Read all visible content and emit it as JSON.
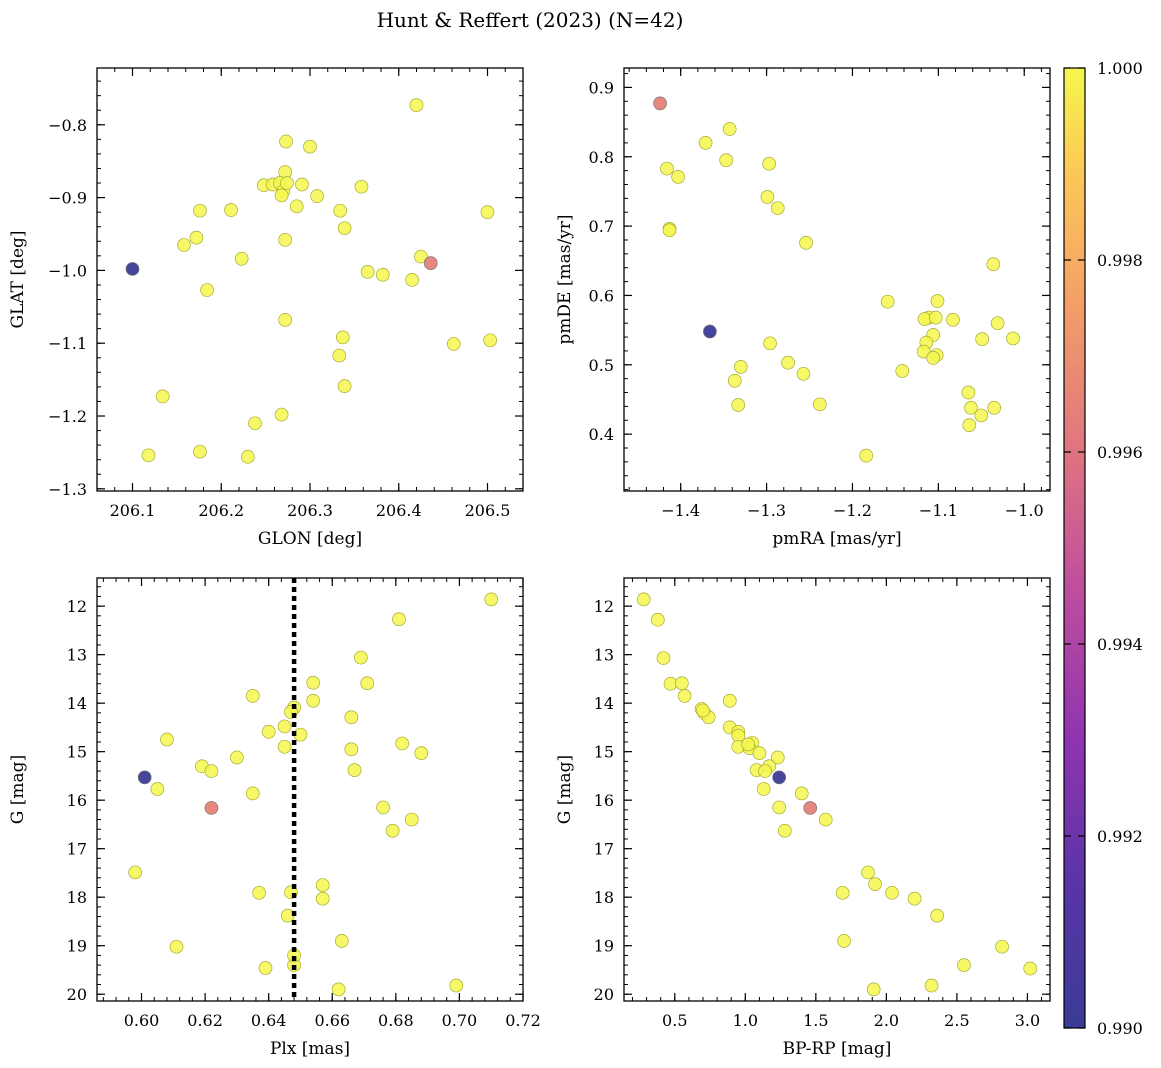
{
  "figure_title": "Hunt & Reffert (2023) (N=42)",
  "colorbar": {
    "range": [
      0.99,
      1.0
    ],
    "ticks": [
      "1.000",
      "0.998",
      "0.996",
      "0.994",
      "0.992",
      "0.990"
    ],
    "colormap": "plasma"
  },
  "chart_data": [
    {
      "type": "scatter",
      "id": "glon-glat",
      "xlabel": "GLON [deg]",
      "ylabel": "GLAT [deg]",
      "xlim": [
        206.06,
        206.54
      ],
      "ylim": [
        -1.303,
        -0.722
      ],
      "xticks": [
        206.1,
        206.2,
        206.3,
        206.4,
        206.5
      ],
      "xtick_labels": [
        "206.1",
        "206.2",
        "206.3",
        "206.4",
        "206.5"
      ],
      "yticks": [
        -0.8,
        -0.9,
        -1.0,
        -1.1,
        -1.2,
        -1.3
      ],
      "ytick_labels": [
        "−0.8",
        "−0.9",
        "−1.0",
        "−1.1",
        "−1.2",
        "−1.3"
      ],
      "points": [
        [
          206.42,
          -0.773,
          1.0
        ],
        [
          206.273,
          -0.823,
          1.0
        ],
        [
          206.3,
          -0.83,
          1.0
        ],
        [
          206.272,
          -0.865,
          1.0
        ],
        [
          206.248,
          -0.883,
          1.0
        ],
        [
          206.258,
          -0.882,
          1.0
        ],
        [
          206.266,
          -0.88,
          1.0
        ],
        [
          206.27,
          -0.891,
          1.0
        ],
        [
          206.274,
          -0.88,
          1.0
        ],
        [
          206.291,
          -0.882,
          1.0
        ],
        [
          206.358,
          -0.885,
          1.0
        ],
        [
          206.268,
          -0.897,
          1.0
        ],
        [
          206.308,
          -0.898,
          1.0
        ],
        [
          206.285,
          -0.912,
          1.0
        ],
        [
          206.176,
          -0.918,
          1.0
        ],
        [
          206.211,
          -0.917,
          1.0
        ],
        [
          206.334,
          -0.918,
          1.0
        ],
        [
          206.5,
          -0.92,
          1.0
        ],
        [
          206.339,
          -0.942,
          1.0
        ],
        [
          206.172,
          -0.955,
          1.0
        ],
        [
          206.272,
          -0.958,
          1.0
        ],
        [
          206.158,
          -0.965,
          1.0
        ],
        [
          206.425,
          -0.981,
          1.0
        ],
        [
          206.223,
          -0.984,
          1.0
        ],
        [
          206.1,
          -0.998,
          0.99
        ],
        [
          206.436,
          -0.99,
          0.9965
        ],
        [
          206.365,
          -1.002,
          1.0
        ],
        [
          206.382,
          -1.006,
          1.0
        ],
        [
          206.415,
          -1.013,
          1.0
        ],
        [
          206.184,
          -1.027,
          1.0
        ],
        [
          206.272,
          -1.068,
          1.0
        ],
        [
          206.337,
          -1.092,
          1.0
        ],
        [
          206.462,
          -1.101,
          1.0
        ],
        [
          206.503,
          -1.096,
          1.0
        ],
        [
          206.333,
          -1.117,
          1.0
        ],
        [
          206.339,
          -1.159,
          1.0
        ],
        [
          206.134,
          -1.173,
          1.0
        ],
        [
          206.268,
          -1.198,
          1.0
        ],
        [
          206.238,
          -1.21,
          1.0
        ],
        [
          206.118,
          -1.254,
          1.0
        ],
        [
          206.176,
          -1.249,
          1.0
        ],
        [
          206.23,
          -1.256,
          1.0
        ]
      ]
    },
    {
      "type": "scatter",
      "id": "pmra-pmde",
      "xlabel": "pmRA [mas/yr]",
      "ylabel": "pmDE [mas/yr]",
      "xlim": [
        -1.466,
        -0.97
      ],
      "ylim": [
        0.318,
        0.928
      ],
      "xticks": [
        -1.4,
        -1.3,
        -1.2,
        -1.1,
        -1.0
      ],
      "xtick_labels": [
        "−1.4",
        "−1.3",
        "−1.2",
        "−1.1",
        "−1.0"
      ],
      "yticks": [
        0.9,
        0.8,
        0.7,
        0.6,
        0.5,
        0.4
      ],
      "ytick_labels": [
        "0.9",
        "0.8",
        "0.7",
        "0.6",
        "0.5",
        "0.4"
      ],
      "points": [
        [
          -1.424,
          0.877,
          0.9965
        ],
        [
          -1.343,
          0.84,
          1.0
        ],
        [
          -1.371,
          0.82,
          1.0
        ],
        [
          -1.347,
          0.795,
          1.0
        ],
        [
          -1.297,
          0.79,
          1.0
        ],
        [
          -1.416,
          0.783,
          1.0
        ],
        [
          -1.403,
          0.771,
          1.0
        ],
        [
          -1.299,
          0.742,
          1.0
        ],
        [
          -1.287,
          0.726,
          1.0
        ],
        [
          -1.413,
          0.696,
          1.0
        ],
        [
          -1.413,
          0.694,
          1.0
        ],
        [
          -1.254,
          0.676,
          1.0
        ],
        [
          -1.036,
          0.645,
          1.0
        ],
        [
          -1.159,
          0.591,
          1.0
        ],
        [
          -1.101,
          0.592,
          1.0
        ],
        [
          -1.111,
          0.568,
          1.0
        ],
        [
          -1.116,
          0.566,
          1.0
        ],
        [
          -1.103,
          0.568,
          1.0
        ],
        [
          -1.083,
          0.565,
          1.0
        ],
        [
          -1.031,
          0.56,
          1.0
        ],
        [
          -1.366,
          0.548,
          0.99
        ],
        [
          -1.106,
          0.543,
          1.0
        ],
        [
          -1.049,
          0.537,
          1.0
        ],
        [
          -1.013,
          0.538,
          1.0
        ],
        [
          -1.114,
          0.532,
          1.0
        ],
        [
          -1.296,
          0.531,
          1.0
        ],
        [
          -1.117,
          0.519,
          1.0
        ],
        [
          -1.102,
          0.514,
          1.0
        ],
        [
          -1.106,
          0.51,
          1.0
        ],
        [
          -1.275,
          0.503,
          1.0
        ],
        [
          -1.33,
          0.497,
          1.0
        ],
        [
          -1.142,
          0.491,
          1.0
        ],
        [
          -1.257,
          0.487,
          1.0
        ],
        [
          -1.337,
          0.477,
          1.0
        ],
        [
          -1.065,
          0.46,
          1.0
        ],
        [
          -1.238,
          0.443,
          1.0
        ],
        [
          -1.333,
          0.442,
          1.0
        ],
        [
          -1.062,
          0.438,
          1.0
        ],
        [
          -1.035,
          0.438,
          1.0
        ],
        [
          -1.05,
          0.427,
          1.0
        ],
        [
          -1.064,
          0.413,
          1.0
        ],
        [
          -1.184,
          0.369,
          1.0
        ]
      ]
    },
    {
      "type": "scatter",
      "id": "plx-g",
      "xlabel": "Plx [mas]",
      "ylabel": "G [mag]",
      "xlim": [
        0.586,
        0.72
      ],
      "ylim": [
        20.14,
        11.42
      ],
      "xticks": [
        0.6,
        0.62,
        0.64,
        0.66,
        0.68,
        0.7,
        0.72
      ],
      "xtick_labels": [
        "0.60",
        "0.62",
        "0.64",
        "0.66",
        "0.68",
        "0.70",
        "0.72"
      ],
      "yticks": [
        12,
        13,
        14,
        15,
        16,
        17,
        18,
        19,
        20
      ],
      "ytick_labels": [
        "12",
        "13",
        "14",
        "15",
        "16",
        "17",
        "18",
        "19",
        "20"
      ],
      "vline": 0.648,
      "points": [
        [
          0.71,
          11.86,
          1.0
        ],
        [
          0.681,
          12.27,
          1.0
        ],
        [
          0.669,
          13.06,
          1.0
        ],
        [
          0.654,
          13.58,
          1.0
        ],
        [
          0.671,
          13.59,
          1.0
        ],
        [
          0.635,
          13.85,
          1.0
        ],
        [
          0.654,
          13.95,
          1.0
        ],
        [
          0.648,
          14.09,
          1.0
        ],
        [
          0.647,
          14.18,
          1.0
        ],
        [
          0.666,
          14.29,
          1.0
        ],
        [
          0.645,
          14.48,
          1.0
        ],
        [
          0.64,
          14.59,
          1.0
        ],
        [
          0.65,
          14.65,
          1.0
        ],
        [
          0.608,
          14.75,
          1.0
        ],
        [
          0.682,
          14.83,
          1.0
        ],
        [
          0.645,
          14.9,
          1.0
        ],
        [
          0.666,
          14.95,
          1.0
        ],
        [
          0.688,
          15.03,
          1.0
        ],
        [
          0.63,
          15.12,
          1.0
        ],
        [
          0.619,
          15.3,
          1.0
        ],
        [
          0.667,
          15.38,
          1.0
        ],
        [
          0.622,
          15.4,
          1.0
        ],
        [
          0.601,
          15.53,
          0.99
        ],
        [
          0.605,
          15.77,
          1.0
        ],
        [
          0.635,
          15.86,
          1.0
        ],
        [
          0.622,
          16.16,
          0.9965
        ],
        [
          0.676,
          16.15,
          1.0
        ],
        [
          0.685,
          16.4,
          1.0
        ],
        [
          0.679,
          16.63,
          1.0
        ],
        [
          0.598,
          17.49,
          1.0
        ],
        [
          0.657,
          17.75,
          1.0
        ],
        [
          0.637,
          17.91,
          1.0
        ],
        [
          0.647,
          17.9,
          1.0
        ],
        [
          0.657,
          18.03,
          1.0
        ],
        [
          0.646,
          18.38,
          1.0
        ],
        [
          0.663,
          18.9,
          1.0
        ],
        [
          0.611,
          19.02,
          1.0
        ],
        [
          0.648,
          19.4,
          1.0
        ],
        [
          0.639,
          19.46,
          1.0
        ],
        [
          0.699,
          19.82,
          1.0
        ],
        [
          0.662,
          19.9,
          1.0
        ],
        [
          0.648,
          19.2,
          1.0
        ]
      ]
    },
    {
      "type": "scatter",
      "id": "bprp-g",
      "xlabel": "BP-RP [mag]",
      "ylabel": "G [mag]",
      "xlim": [
        0.14,
        3.16
      ],
      "ylim": [
        20.14,
        11.42
      ],
      "xticks": [
        0.5,
        1.0,
        1.5,
        2.0,
        2.5,
        3.0
      ],
      "xtick_labels": [
        "0.5",
        "1.0",
        "1.5",
        "2.0",
        "2.5",
        "3.0"
      ],
      "yticks": [
        12,
        13,
        14,
        15,
        16,
        17,
        18,
        19,
        20
      ],
      "ytick_labels": [
        "12",
        "13",
        "14",
        "15",
        "16",
        "17",
        "18",
        "19",
        "20"
      ],
      "points": [
        [
          0.28,
          11.86,
          1.0
        ],
        [
          0.38,
          12.28,
          1.0
        ],
        [
          0.42,
          13.07,
          1.0
        ],
        [
          0.47,
          13.6,
          1.0
        ],
        [
          0.55,
          13.59,
          1.0
        ],
        [
          0.57,
          13.85,
          1.0
        ],
        [
          0.89,
          13.95,
          1.0
        ],
        [
          0.69,
          14.12,
          1.0
        ],
        [
          0.71,
          14.21,
          1.0
        ],
        [
          0.74,
          14.29,
          1.0
        ],
        [
          0.89,
          14.5,
          1.0
        ],
        [
          0.95,
          14.59,
          1.0
        ],
        [
          0.95,
          14.67,
          1.0
        ],
        [
          1.05,
          14.82,
          1.0
        ],
        [
          0.95,
          14.9,
          1.0
        ],
        [
          1.03,
          14.93,
          1.0
        ],
        [
          1.1,
          15.03,
          1.0
        ],
        [
          1.23,
          15.12,
          1.0
        ],
        [
          1.17,
          15.3,
          1.0
        ],
        [
          1.08,
          15.38,
          1.0
        ],
        [
          1.14,
          15.4,
          1.0
        ],
        [
          1.24,
          15.53,
          0.99
        ],
        [
          1.13,
          15.77,
          1.0
        ],
        [
          1.4,
          15.86,
          1.0
        ],
        [
          1.46,
          16.16,
          0.9965
        ],
        [
          1.24,
          16.15,
          1.0
        ],
        [
          1.57,
          16.4,
          1.0
        ],
        [
          1.28,
          16.63,
          1.0
        ],
        [
          1.87,
          17.49,
          1.0
        ],
        [
          1.92,
          17.73,
          1.0
        ],
        [
          1.69,
          17.91,
          1.0
        ],
        [
          2.04,
          17.91,
          1.0
        ],
        [
          2.2,
          18.03,
          1.0
        ],
        [
          2.36,
          18.38,
          1.0
        ],
        [
          1.7,
          18.9,
          1.0
        ],
        [
          2.82,
          19.02,
          1.0
        ],
        [
          2.55,
          19.4,
          1.0
        ],
        [
          3.02,
          19.47,
          1.0
        ],
        [
          2.32,
          19.82,
          1.0
        ],
        [
          1.91,
          19.9,
          1.0
        ],
        [
          1.02,
          14.85,
          1.0
        ],
        [
          0.7,
          14.15,
          1.0
        ]
      ]
    }
  ]
}
